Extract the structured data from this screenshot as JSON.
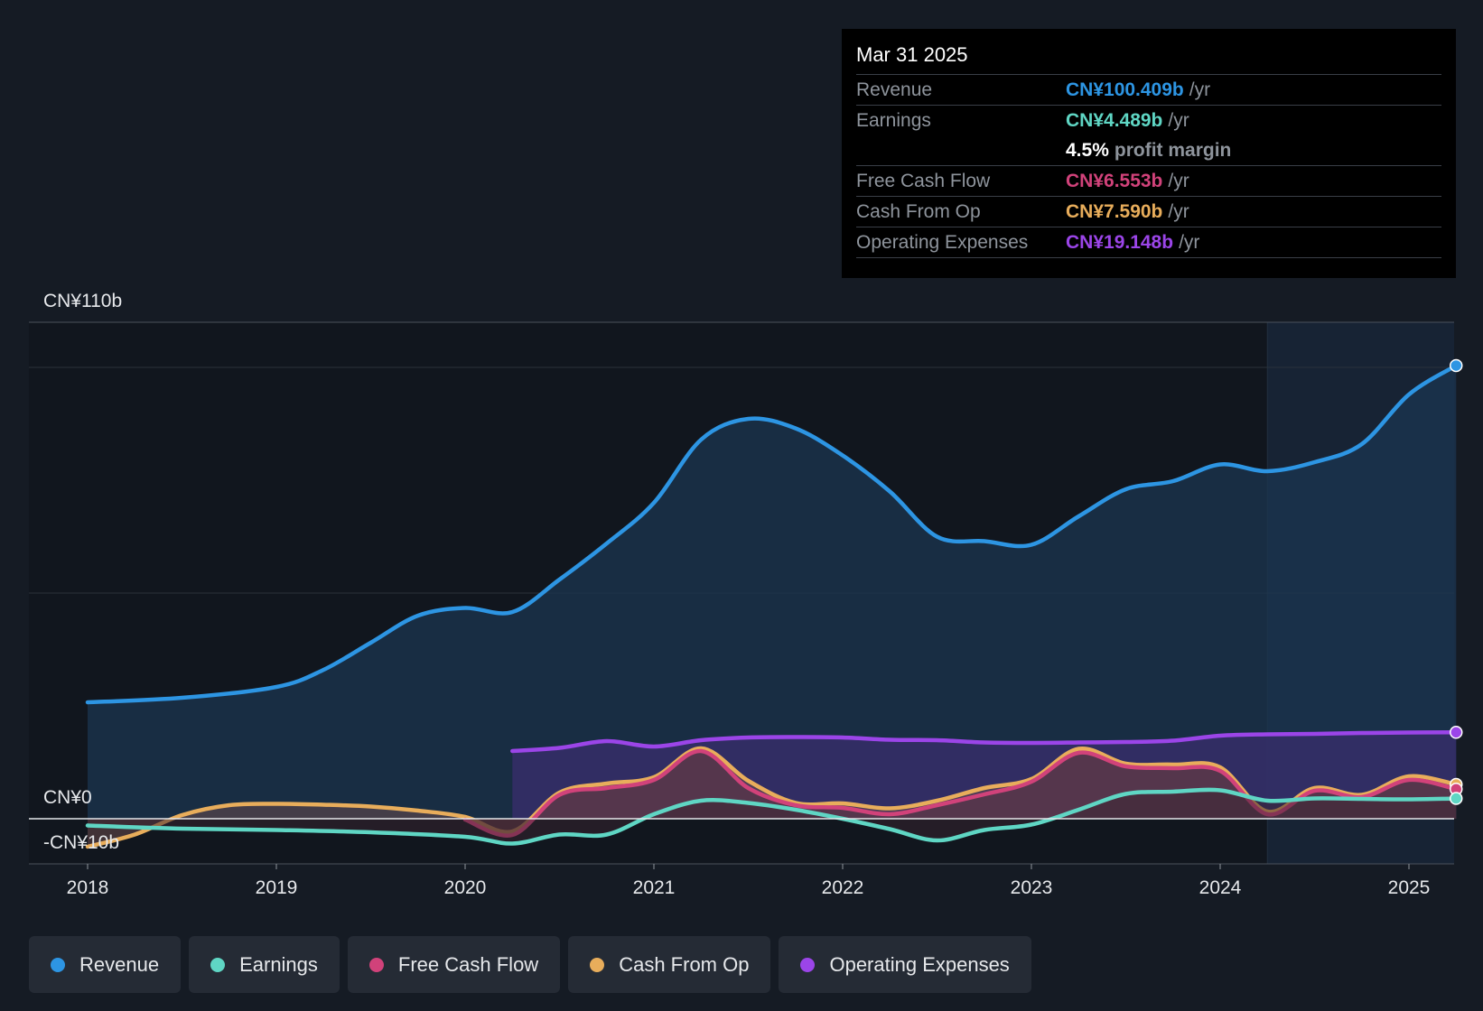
{
  "chart_data": {
    "type": "area",
    "currency": "CN¥",
    "y_axis_labels": {
      "top": "CN¥110b",
      "zero": "CN¥0",
      "bottom": "-CN¥10b"
    },
    "ylim": [
      -10,
      110
    ],
    "xlim": [
      2017.7,
      2025.25
    ],
    "x_tick_labels": [
      "2018",
      "2019",
      "2020",
      "2021",
      "2022",
      "2023",
      "2024",
      "2025"
    ],
    "x_ticks": [
      2018,
      2019,
      2020,
      2021,
      2022,
      2023,
      2024,
      2025
    ],
    "highlight_start": 2024.25,
    "grid": true,
    "series": [
      {
        "name": "Revenue",
        "color": "#2d95e3",
        "fill": "#1b3550",
        "points": [
          [
            2018.0,
            25.8
          ],
          [
            2018.5,
            26.8
          ],
          [
            2019.0,
            29.2
          ],
          [
            2019.25,
            33
          ],
          [
            2019.5,
            39
          ],
          [
            2019.75,
            45
          ],
          [
            2020.0,
            46.7
          ],
          [
            2020.25,
            45.8
          ],
          [
            2020.5,
            53
          ],
          [
            2020.75,
            61
          ],
          [
            2021.0,
            70
          ],
          [
            2021.25,
            84
          ],
          [
            2021.5,
            88.6
          ],
          [
            2021.75,
            86.5
          ],
          [
            2022.0,
            80.5
          ],
          [
            2022.25,
            72.5
          ],
          [
            2022.5,
            62.5
          ],
          [
            2022.75,
            61.5
          ],
          [
            2023.0,
            60.7
          ],
          [
            2023.25,
            67
          ],
          [
            2023.5,
            73
          ],
          [
            2023.75,
            74.8
          ],
          [
            2024.0,
            78.5
          ],
          [
            2024.25,
            77
          ],
          [
            2024.5,
            79
          ],
          [
            2024.75,
            83
          ],
          [
            2025.0,
            94
          ],
          [
            2025.25,
            100.409
          ]
        ]
      },
      {
        "name": "Operating Expenses",
        "color": "#9b45e8",
        "fill": "#3a2e6e",
        "points": [
          [
            2020.25,
            15.0
          ],
          [
            2020.5,
            15.7
          ],
          [
            2020.75,
            17.2
          ],
          [
            2021.0,
            16.0
          ],
          [
            2021.25,
            17.4
          ],
          [
            2021.5,
            18.0
          ],
          [
            2021.75,
            18.1
          ],
          [
            2022.0,
            18.0
          ],
          [
            2022.25,
            17.5
          ],
          [
            2022.5,
            17.4
          ],
          [
            2022.75,
            16.9
          ],
          [
            2023.0,
            16.8
          ],
          [
            2023.25,
            16.9
          ],
          [
            2023.5,
            17.0
          ],
          [
            2023.75,
            17.3
          ],
          [
            2024.0,
            18.4
          ],
          [
            2024.25,
            18.7
          ],
          [
            2024.5,
            18.8
          ],
          [
            2024.75,
            19.0
          ],
          [
            2025.0,
            19.1
          ],
          [
            2025.25,
            19.148
          ]
        ]
      },
      {
        "name": "Cash From Op",
        "color": "#e8ad5b",
        "fill": "#6a4a4c",
        "points": [
          [
            2018.0,
            -6.2
          ],
          [
            2018.25,
            -3.5
          ],
          [
            2018.5,
            0.8
          ],
          [
            2018.75,
            3.0
          ],
          [
            2019.0,
            3.3
          ],
          [
            2019.25,
            3.1
          ],
          [
            2019.5,
            2.7
          ],
          [
            2019.75,
            1.8
          ],
          [
            2020.0,
            0.4
          ],
          [
            2020.25,
            -2.8
          ],
          [
            2020.5,
            5.8
          ],
          [
            2020.75,
            7.8
          ],
          [
            2021.0,
            9.2
          ],
          [
            2021.25,
            15.6
          ],
          [
            2021.5,
            8.4
          ],
          [
            2021.75,
            3.5
          ],
          [
            2022.0,
            3.4
          ],
          [
            2022.25,
            2.3
          ],
          [
            2022.5,
            4.0
          ],
          [
            2022.75,
            6.8
          ],
          [
            2023.0,
            8.8
          ],
          [
            2023.25,
            15.5
          ],
          [
            2023.5,
            12.2
          ],
          [
            2023.75,
            12.0
          ],
          [
            2024.0,
            11.4
          ],
          [
            2024.25,
            1.6
          ],
          [
            2024.5,
            6.8
          ],
          [
            2024.75,
            5.3
          ],
          [
            2025.0,
            9.4
          ],
          [
            2025.25,
            7.59
          ]
        ]
      },
      {
        "name": "Free Cash Flow",
        "color": "#d1427a",
        "fill": "#5a2e40",
        "points": [
          [
            2020.0,
            -0.2
          ],
          [
            2020.25,
            -3.6
          ],
          [
            2020.5,
            5.3
          ],
          [
            2020.75,
            6.8
          ],
          [
            2021.0,
            8.6
          ],
          [
            2021.25,
            15.0
          ],
          [
            2021.5,
            6.8
          ],
          [
            2021.75,
            3.0
          ],
          [
            2022.0,
            2.4
          ],
          [
            2022.25,
            1.0
          ],
          [
            2022.5,
            3.0
          ],
          [
            2022.75,
            5.4
          ],
          [
            2023.0,
            8.2
          ],
          [
            2023.25,
            14.6
          ],
          [
            2023.5,
            11.6
          ],
          [
            2023.75,
            11.2
          ],
          [
            2024.0,
            10.6
          ],
          [
            2024.25,
            1.0
          ],
          [
            2024.5,
            6.2
          ],
          [
            2024.75,
            4.8
          ],
          [
            2025.0,
            8.6
          ],
          [
            2025.25,
            6.553
          ]
        ]
      },
      {
        "name": "Earnings",
        "color": "#5fd6c4",
        "fill": "#3a2430",
        "points": [
          [
            2018.0,
            -1.5
          ],
          [
            2018.5,
            -2.2
          ],
          [
            2019.0,
            -2.5
          ],
          [
            2019.5,
            -3.0
          ],
          [
            2020.0,
            -4.0
          ],
          [
            2020.25,
            -5.5
          ],
          [
            2020.5,
            -3.5
          ],
          [
            2020.75,
            -3.5
          ],
          [
            2021.0,
            1.0
          ],
          [
            2021.25,
            4.0
          ],
          [
            2021.5,
            3.5
          ],
          [
            2021.75,
            2.0
          ],
          [
            2022.0,
            0.0
          ],
          [
            2022.25,
            -2.3
          ],
          [
            2022.5,
            -4.8
          ],
          [
            2022.75,
            -2.5
          ],
          [
            2023.0,
            -1.3
          ],
          [
            2023.25,
            2.0
          ],
          [
            2023.5,
            5.5
          ],
          [
            2023.75,
            6.0
          ],
          [
            2024.0,
            6.3
          ],
          [
            2024.25,
            4.0
          ],
          [
            2024.5,
            4.5
          ],
          [
            2024.75,
            4.4
          ],
          [
            2025.0,
            4.3
          ],
          [
            2025.25,
            4.489
          ]
        ]
      }
    ]
  },
  "tooltip": {
    "date": "Mar 31 2025",
    "rows": [
      {
        "label": "Revenue",
        "value": "CN¥100.409b",
        "unit": "/yr",
        "color": "#2d95e3"
      },
      {
        "label": "Earnings",
        "value": "CN¥4.489b",
        "unit": "/yr",
        "color": "#5fd6c4"
      },
      {
        "label": "",
        "value": "4.5%",
        "unit": "profit margin",
        "color": "#ffffff"
      },
      {
        "label": "Free Cash Flow",
        "value": "CN¥6.553b",
        "unit": "/yr",
        "color": "#d1427a"
      },
      {
        "label": "Cash From Op",
        "value": "CN¥7.590b",
        "unit": "/yr",
        "color": "#e8ad5b"
      },
      {
        "label": "Operating Expenses",
        "value": "CN¥19.148b",
        "unit": "/yr",
        "color": "#9b45e8"
      }
    ]
  },
  "legend": [
    {
      "label": "Revenue",
      "color": "#2d95e3"
    },
    {
      "label": "Earnings",
      "color": "#5fd6c4"
    },
    {
      "label": "Free Cash Flow",
      "color": "#d1427a"
    },
    {
      "label": "Cash From Op",
      "color": "#e8ad5b"
    },
    {
      "label": "Operating Expenses",
      "color": "#9b45e8"
    }
  ]
}
